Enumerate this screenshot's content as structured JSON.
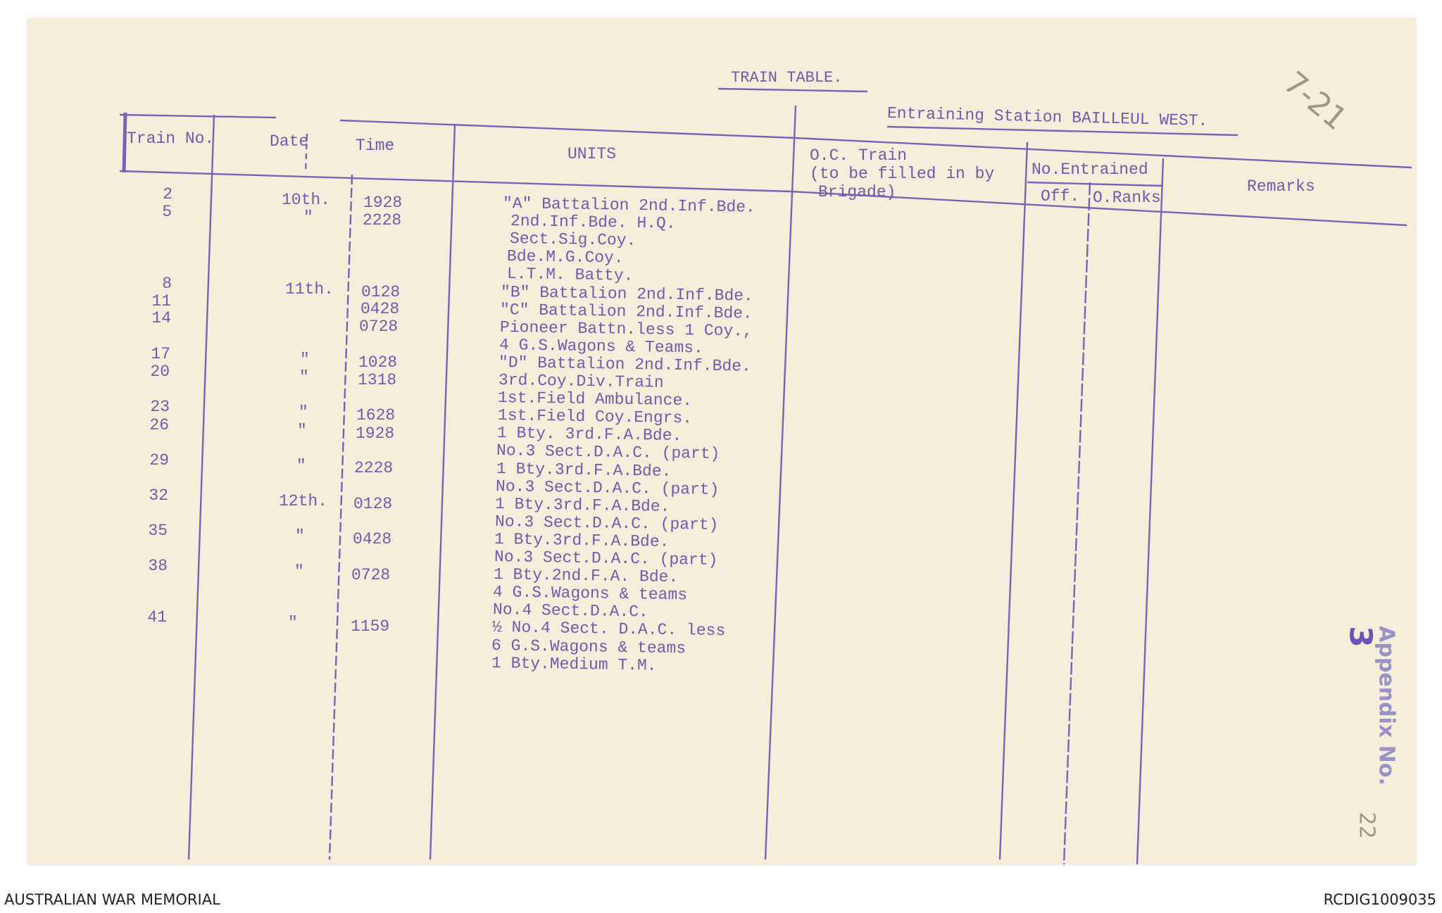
{
  "document": {
    "title": "TRAIN TABLE.",
    "station": "Entraining Station BAILLEUL WEST.",
    "pencil_ref": "7-21",
    "stamp": "Appendix No.",
    "stamp_number": "3",
    "folio": "22",
    "ink_color": "#6c5db0"
  },
  "columns": {
    "train_no": "Train No.",
    "date": "Date",
    "time": "Time",
    "units": "UNITS",
    "oc_train_1": "O.C. Train",
    "oc_train_2": "(to be filled in by",
    "oc_train_3": "Brigade)",
    "no_entrained": "No.Entrained",
    "off": "Off.",
    "o_ranks": "O.Ranks",
    "remarks": "Remarks"
  },
  "trains": [
    {
      "no": "2",
      "date": "10th.",
      "time": "1928"
    },
    {
      "no": "5",
      "date": "\"",
      "time": "2228"
    },
    {
      "no": "8",
      "date": "11th.",
      "time": "0128"
    },
    {
      "no": "11",
      "date": "",
      "time": "0428"
    },
    {
      "no": "14",
      "date": "",
      "time": "0728"
    },
    {
      "no": "17",
      "date": "\"",
      "time": "1028"
    },
    {
      "no": "20",
      "date": "\"",
      "time": "1318"
    },
    {
      "no": "23",
      "date": "\"",
      "time": "1628"
    },
    {
      "no": "26",
      "date": "\"",
      "time": "1928"
    },
    {
      "no": "29",
      "date": "\"",
      "time": "2228"
    },
    {
      "no": "32",
      "date": "12th.",
      "time": "0128"
    },
    {
      "no": "35",
      "date": "\"",
      "time": "0428"
    },
    {
      "no": "38",
      "date": "\"",
      "time": "0728"
    },
    {
      "no": "41",
      "date": "\"",
      "time": "1159"
    }
  ],
  "units": [
    "\"A\" Battalion 2nd.Inf.Bde.",
    "2nd.Inf.Bde. H.Q.",
    "Sect.Sig.Coy.",
    "Bde.M.G.Coy.",
    "L.T.M. Batty.",
    "\"B\" Battalion 2nd.Inf.Bde.",
    "\"C\" Battalion 2nd.Inf.Bde.",
    "Pioneer Battn.less 1 Coy.,",
    "4 G.S.Wagons & Teams.",
    "\"D\" Battalion 2nd.Inf.Bde.",
    "3rd.Coy.Div.Train",
    "1st.Field Ambulance.",
    "1st.Field Coy.Engrs.",
    "1 Bty. 3rd.F.A.Bde.",
    "No.3 Sect.D.A.C. (part)",
    "1 Bty.3rd.F.A.Bde.",
    "No.3 Sect.D.A.C. (part)",
    "1 Bty.3rd.F.A.Bde.",
    "No.3 Sect.D.A.C. (part)",
    "1 Bty.3rd.F.A.Bde.",
    "No.3 Sect.D.A.C. (part)",
    "1 Bty.2nd.F.A. Bde.",
    "4 G.S.Wagons & teams",
    "No.4 Sect.D.A.C.",
    "½ No.4 Sect. D.A.C. less",
    "6 G.S.Wagons & teams",
    "1 Bty.Medium T.M."
  ],
  "footer": {
    "left": "AUSTRALIAN WAR MEMORIAL",
    "right": "RCDIG1009035"
  }
}
